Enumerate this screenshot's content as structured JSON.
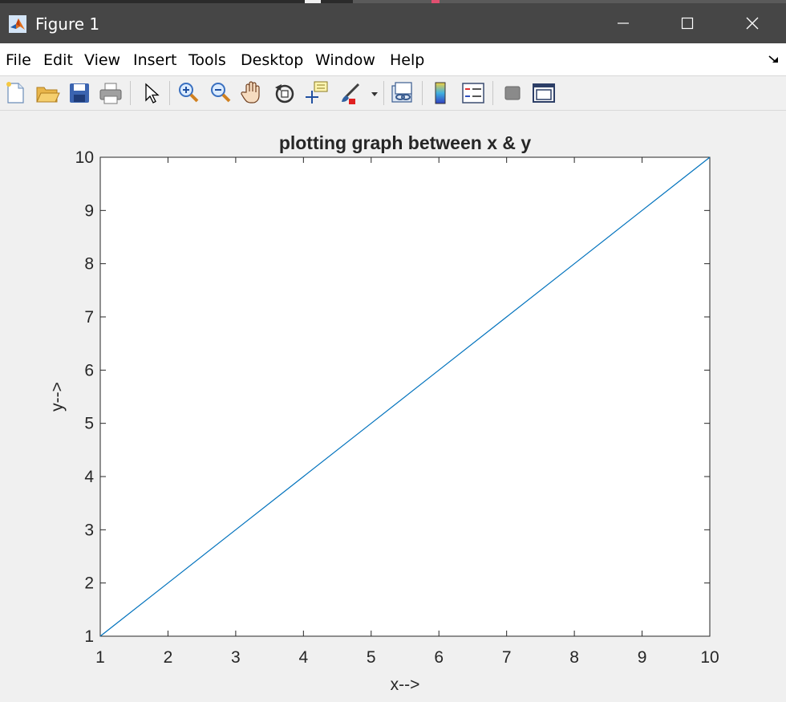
{
  "window": {
    "title": "Figure 1",
    "colors": {
      "titlebar": "#464646",
      "menubar": "#ffffff",
      "toolbar": "#f0f0f0"
    }
  },
  "menubar": {
    "items": [
      "File",
      "Edit",
      "View",
      "Insert",
      "Tools",
      "Desktop",
      "Window",
      "Help"
    ]
  },
  "toolbar": {
    "icons": [
      "new-figure-icon",
      "open-file-icon",
      "save-figure-icon",
      "print-figure-icon",
      "edit-plot-icon",
      "zoom-in-icon",
      "zoom-out-icon",
      "pan-icon",
      "rotate-3d-icon",
      "data-cursor-icon",
      "brush-icon",
      "brush-dropdown-icon",
      "link-plot-icon",
      "insert-colorbar-icon",
      "insert-legend-icon",
      "hide-plot-tools-icon",
      "show-plot-tools-icon"
    ]
  },
  "chart_data": {
    "type": "line",
    "title": "plotting graph between x & y",
    "xlabel": "x-->",
    "ylabel": "y-->",
    "xlim": [
      1,
      10
    ],
    "ylim": [
      1,
      10
    ],
    "xticks": [
      1,
      2,
      3,
      4,
      5,
      6,
      7,
      8,
      9,
      10
    ],
    "yticks": [
      1,
      2,
      3,
      4,
      5,
      6,
      7,
      8,
      9,
      10
    ],
    "grid": false,
    "series": [
      {
        "x": [
          1,
          2,
          3,
          4,
          5,
          6,
          7,
          8,
          9,
          10
        ],
        "y": [
          1,
          2,
          3,
          4,
          5,
          6,
          7,
          8,
          9,
          10
        ],
        "color": "#0072bd"
      }
    ]
  }
}
